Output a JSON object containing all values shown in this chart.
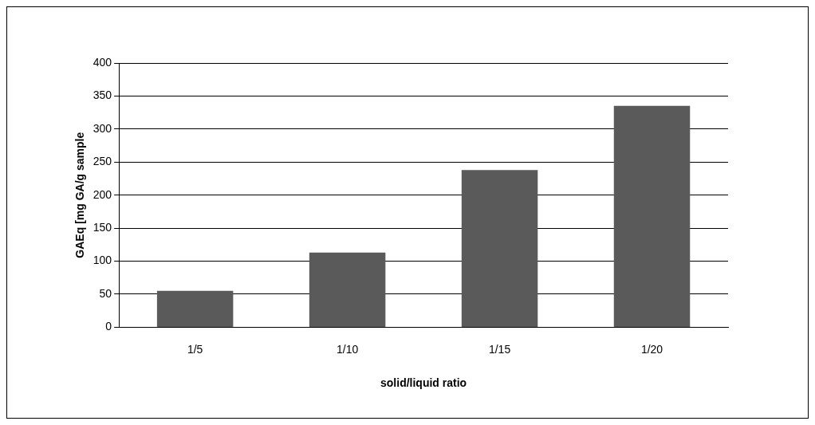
{
  "chart_data": {
    "type": "bar",
    "xlabel": "solid/liquid ratio",
    "ylabel": "GAEq [mg GA/g sample",
    "categories": [
      "1/5",
      "1/10",
      "1/15",
      "1/20"
    ],
    "values": [
      55,
      113,
      238,
      335
    ],
    "color": "#5a5a5a",
    "ylim": [
      0,
      400
    ],
    "yticks": [
      0,
      50,
      100,
      150,
      200,
      250,
      300,
      350,
      400
    ],
    "grid": "y"
  }
}
